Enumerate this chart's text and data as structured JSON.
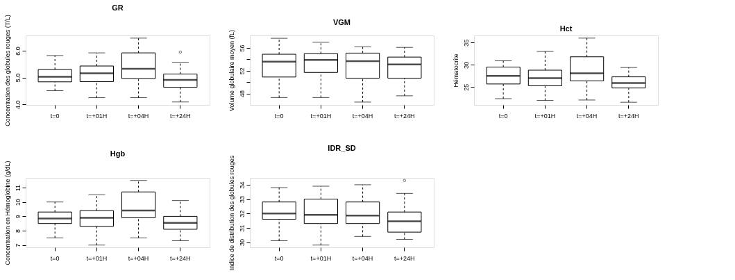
{
  "chart_data": [
    {
      "type": "box",
      "title": "GR",
      "ylabel": "Concentration des globules rouges (T/L)",
      "categories": [
        "t=0",
        "t=+01H",
        "t=+04H",
        "t=+24H"
      ],
      "ylim": [
        3.98,
        6.57
      ],
      "yticks": [
        {
          "value": 4,
          "label": "4.0"
        },
        {
          "value": 5,
          "label": "5.0"
        },
        {
          "value": 6,
          "label": "6.0"
        }
      ],
      "boxes": [
        {
          "low": 4.51,
          "q1": 4.84,
          "median": 5.03,
          "q3": 5.3,
          "high": 5.82
        },
        {
          "low": 4.25,
          "q1": 4.85,
          "median": 5.16,
          "q3": 5.43,
          "high": 5.92
        },
        {
          "low": 4.25,
          "q1": 4.96,
          "median": 5.33,
          "q3": 5.92,
          "high": 6.47
        },
        {
          "low": 4.09,
          "q1": 4.64,
          "median": 4.91,
          "q3": 5.13,
          "high": 5.57,
          "outliers": [
            5.95
          ]
        }
      ]
    },
    {
      "type": "box",
      "title": "VGM",
      "ylabel": "Volume globulaire moyen (fL)",
      "categories": [
        "t=0",
        "t=+01H",
        "t=+04H",
        "t=+24H"
      ],
      "ylim": [
        46.0,
        58.2
      ],
      "yticks": [
        48,
        {
          "value": 50,
          "label": null
        },
        52,
        {
          "value": 54,
          "label": null
        },
        56
      ],
      "boxes": [
        {
          "low": 47.3,
          "q1": 50.9,
          "median": 53.6,
          "q3": 54.9,
          "high": 57.7
        },
        {
          "low": 47.3,
          "q1": 51.7,
          "median": 53.9,
          "q3": 55.0,
          "high": 57.0
        },
        {
          "low": 46.5,
          "q1": 50.7,
          "median": 53.7,
          "q3": 55.1,
          "high": 56.2
        },
        {
          "low": 47.6,
          "q1": 50.7,
          "median": 53.1,
          "q3": 54.4,
          "high": 56.1
        }
      ]
    },
    {
      "type": "box",
      "title": "Hct",
      "ylabel": "Hématocrite",
      "categories": [
        "t=0",
        "t=+01H",
        "t=+04H",
        "t=+24H"
      ],
      "ylim": [
        21.0,
        36.6
      ],
      "yticks": [
        25,
        30,
        35
      ],
      "boxes": [
        {
          "low": 22.4,
          "q1": 25.7,
          "median": 27.5,
          "q3": 29.5,
          "high": 30.9
        },
        {
          "low": 22.0,
          "q1": 25.3,
          "median": 27.0,
          "q3": 28.8,
          "high": 33.0
        },
        {
          "low": 22.1,
          "q1": 26.4,
          "median": 28.1,
          "q3": 31.8,
          "high": 36.0
        },
        {
          "low": 21.6,
          "q1": 24.8,
          "median": 25.9,
          "q3": 27.3,
          "high": 29.4
        }
      ]
    },
    {
      "type": "box",
      "title": "Hgb",
      "ylabel": "Concentration en Hémoglobine (g/dL)",
      "categories": [
        "t=0",
        "t=+01H",
        "t=+04H",
        "t=+24H"
      ],
      "ylim": [
        6.84,
        11.68
      ],
      "yticks": [
        7,
        8,
        9,
        10,
        11
      ],
      "boxes": [
        {
          "low": 7.5,
          "q1": 8.5,
          "median": 8.85,
          "q3": 9.3,
          "high": 10.0
        },
        {
          "low": 7.0,
          "q1": 8.3,
          "median": 8.9,
          "q3": 9.4,
          "high": 10.5
        },
        {
          "low": 7.5,
          "q1": 8.9,
          "median": 9.4,
          "q3": 10.7,
          "high": 11.5
        },
        {
          "low": 7.3,
          "q1": 8.1,
          "median": 8.55,
          "q3": 9.0,
          "high": 10.1
        }
      ]
    },
    {
      "type": "box",
      "title": "IDR_SD",
      "ylabel": "Indice de distribution des globules rouges",
      "categories": [
        "t=0",
        "t=+01H",
        "t=+04H",
        "t=+24H"
      ],
      "ylim": [
        29.64,
        34.48
      ],
      "yticks": [
        30,
        31,
        32,
        33,
        34
      ],
      "boxes": [
        {
          "low": 30.1,
          "q1": 31.6,
          "median": 32.0,
          "q3": 32.8,
          "high": 33.8
        },
        {
          "low": 29.8,
          "q1": 31.3,
          "median": 31.9,
          "q3": 33.0,
          "high": 33.9
        },
        {
          "low": 30.4,
          "q1": 31.3,
          "median": 31.85,
          "q3": 32.8,
          "high": 34.0
        },
        {
          "low": 30.2,
          "q1": 30.7,
          "median": 31.45,
          "q3": 32.1,
          "high": 33.4,
          "outliers": [
            34.3
          ]
        }
      ]
    }
  ]
}
